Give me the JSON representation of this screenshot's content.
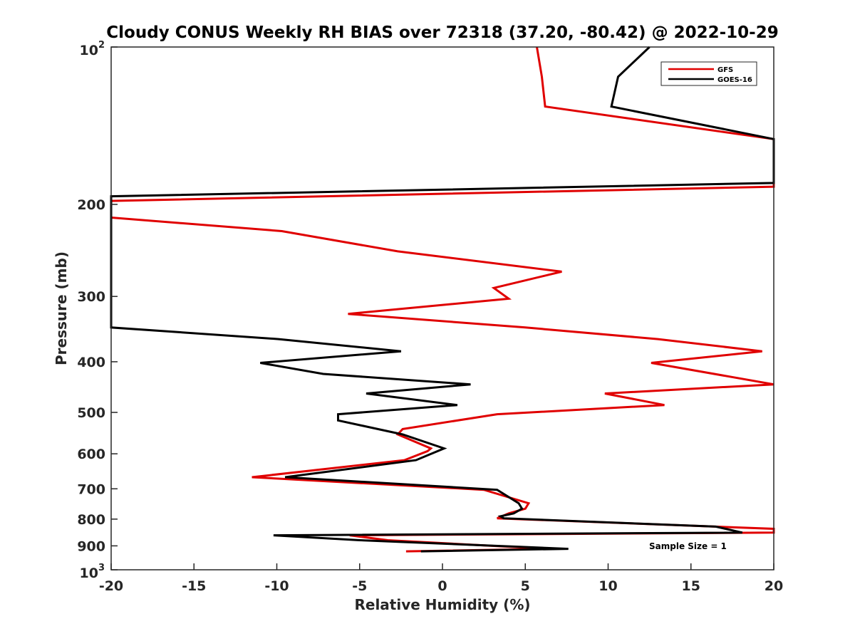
{
  "chart_data": {
    "type": "line",
    "title": "Cloudy CONUS Weekly RH BIAS over 72318 (37.20, -80.42) @ 2022-10-29",
    "xlabel": "Relative Humidity (%)",
    "ylabel": "Pressure (mb)",
    "xlim": [
      -20,
      20
    ],
    "ylim": [
      100,
      1000
    ],
    "yscale": "log",
    "y_reversed": true,
    "grid": false,
    "legend_position": "top-right",
    "note": "Sample Size = 1",
    "x_ticks": [
      -20,
      -15,
      -10,
      -5,
      0,
      5,
      10,
      15,
      20
    ],
    "x_tick_labels": [
      "-20",
      "-15",
      "-10",
      "-5",
      "0",
      "5",
      "10",
      "15",
      "20"
    ],
    "y_ticks": [
      {
        "value": 100,
        "label": "10",
        "exp": "2"
      },
      {
        "value": 200,
        "label": "200",
        "exp": ""
      },
      {
        "value": 300,
        "label": "300",
        "exp": ""
      },
      {
        "value": 400,
        "label": "400",
        "exp": ""
      },
      {
        "value": 500,
        "label": "500",
        "exp": ""
      },
      {
        "value": 600,
        "label": "600",
        "exp": ""
      },
      {
        "value": 700,
        "label": "700",
        "exp": ""
      },
      {
        "value": 800,
        "label": "800",
        "exp": ""
      },
      {
        "value": 900,
        "label": "900",
        "exp": ""
      },
      {
        "value": 1000,
        "label": "10",
        "exp": "3"
      }
    ],
    "series": [
      {
        "name": "GFS",
        "color": "#e00000",
        "points": [
          [
            5.7,
            100
          ],
          [
            6.0,
            114
          ],
          [
            6.2,
            130
          ],
          [
            20,
            150
          ],
          [
            20,
            185
          ],
          [
            -20,
            197
          ],
          [
            -20,
            212
          ],
          [
            -9.7,
            225
          ],
          [
            -2.7,
            246
          ],
          [
            7.2,
            269
          ],
          [
            3.1,
            289
          ],
          [
            4.0,
            303
          ],
          [
            -5.7,
            324
          ],
          [
            5.0,
            344
          ],
          [
            13.0,
            362
          ],
          [
            19.3,
            382
          ],
          [
            12.6,
            402
          ],
          [
            20,
            442
          ],
          [
            9.8,
            460
          ],
          [
            13.4,
            484
          ],
          [
            3.3,
            504
          ],
          [
            -2.4,
            538
          ],
          [
            -2.7,
            551
          ],
          [
            -0.7,
            586
          ],
          [
            -0.9,
            593
          ],
          [
            -2.3,
            617
          ],
          [
            -11.5,
            665
          ],
          [
            2.5,
            703
          ],
          [
            5.2,
            746
          ],
          [
            5.0,
            764
          ],
          [
            4.0,
            780
          ],
          [
            3.3,
            797
          ],
          [
            20,
            835
          ],
          [
            20,
            849
          ],
          [
            -5.6,
            859
          ],
          [
            -3.3,
            878
          ],
          [
            6.4,
            912
          ],
          [
            -2.2,
            922
          ]
        ]
      },
      {
        "name": "GOES-16",
        "color": "#000000",
        "points": [
          [
            12.5,
            100
          ],
          [
            10.6,
            114
          ],
          [
            10.2,
            130
          ],
          [
            20,
            150
          ],
          [
            20,
            182
          ],
          [
            -20,
            193
          ],
          [
            -20,
            344
          ],
          [
            -9.9,
            362
          ],
          [
            -2.5,
            382
          ],
          [
            -11.0,
            402
          ],
          [
            -7.2,
            422
          ],
          [
            1.7,
            442
          ],
          [
            -4.6,
            460
          ],
          [
            0.9,
            484
          ],
          [
            -6.3,
            504
          ],
          [
            -6.3,
            518
          ],
          [
            -2.4,
            551
          ],
          [
            0.1,
            586
          ],
          [
            -1.6,
            617
          ],
          [
            -9.5,
            665
          ],
          [
            3.3,
            703
          ],
          [
            4.6,
            746
          ],
          [
            4.8,
            764
          ],
          [
            4.3,
            780
          ],
          [
            3.5,
            790
          ],
          [
            3.7,
            797
          ],
          [
            16.5,
            827
          ],
          [
            18.1,
            849
          ],
          [
            -10.2,
            859
          ],
          [
            -5.0,
            878
          ],
          [
            7.6,
            912
          ],
          [
            -1.3,
            922
          ]
        ]
      }
    ]
  }
}
